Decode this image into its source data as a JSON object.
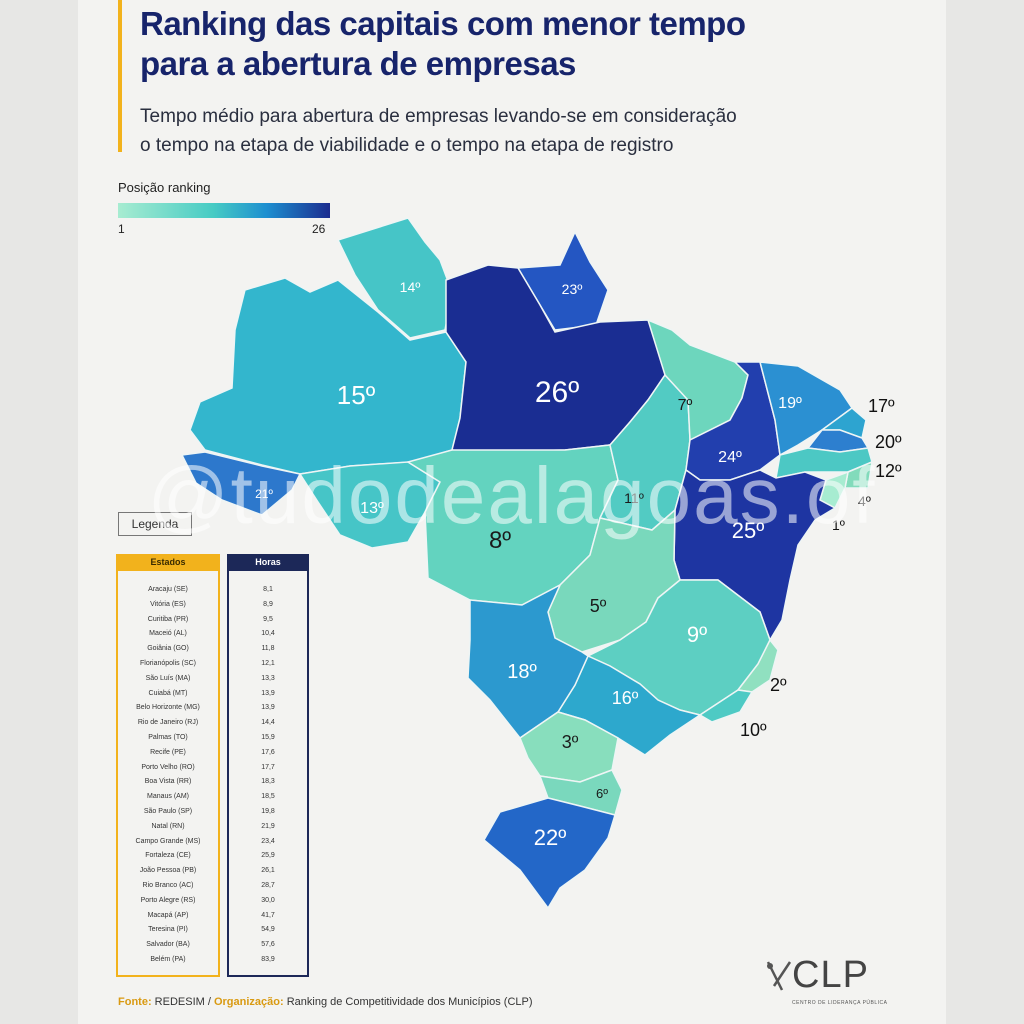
{
  "title_line1": "Ranking das capitais com menor tempo",
  "title_line2": "para a abertura de empresas",
  "subtitle_line1": "Tempo médio para abertura de empresas levando-se em consideração",
  "subtitle_line2": "o tempo na etapa de viabilidade e o tempo na etapa de registro",
  "legend": {
    "title": "Posição ranking",
    "min": "1",
    "max": "26"
  },
  "legenda_label": "Legenda",
  "table": {
    "col_estados": "Estados",
    "col_horas": "Horas",
    "estados": [
      "Aracaju (SE)",
      "Vitória (ES)",
      "Curitiba (PR)",
      "Maceió (AL)",
      "Goiânia (GO)",
      "Florianópolis (SC)",
      "São Luís (MA)",
      "Cuiabá (MT)",
      "Belo Horizonte (MG)",
      "Rio de Janeiro (RJ)",
      "Palmas (TO)",
      "Recife (PE)",
      "Porto Velho (RO)",
      "Boa Vista (RR)",
      "Manaus (AM)",
      "São Paulo (SP)",
      "Natal (RN)",
      "Campo Grande (MS)",
      "Fortaleza (CE)",
      "João Pessoa (PB)",
      "Rio Branco (AC)",
      "Porto Alegre (RS)",
      "Macapá (AP)",
      "Teresina (PI)",
      "Salvador (BA)",
      "Belém (PA)"
    ],
    "horas": [
      "8,1",
      "8,9",
      "9,5",
      "10,4",
      "11,8",
      "12,1",
      "13,3",
      "13,9",
      "13,9",
      "14,4",
      "15,9",
      "17,6",
      "17,7",
      "18,3",
      "18,5",
      "19,8",
      "21,9",
      "23,4",
      "25,9",
      "26,1",
      "28,7",
      "30,0",
      "41,7",
      "54,9",
      "57,6",
      "83,9"
    ]
  },
  "map": {
    "states": [
      {
        "id": "RR",
        "rank": "14º",
        "color": "#46c5c7"
      },
      {
        "id": "AP",
        "rank": "23º",
        "color": "#2456c2"
      },
      {
        "id": "AM",
        "rank": "15º",
        "color": "#33b6cd"
      },
      {
        "id": "PA",
        "rank": "26º",
        "color": "#1a2d92"
      },
      {
        "id": "AC",
        "rank": "21º",
        "color": "#2d78cc"
      },
      {
        "id": "RO",
        "rank": "13º",
        "color": "#46c5c7"
      },
      {
        "id": "MT",
        "rank": "8º",
        "color": "#63d3bf"
      },
      {
        "id": "TO",
        "rank": "11º",
        "color": "#52cbc3"
      },
      {
        "id": "MA",
        "rank": "7º",
        "color": "#6dd6bd"
      },
      {
        "id": "PI",
        "rank": "24º",
        "color": "#223fae"
      },
      {
        "id": "CE",
        "rank": "19º",
        "color": "#2b90d2"
      },
      {
        "id": "RN",
        "rank": "17º",
        "color": "#2da4d0"
      },
      {
        "id": "PB",
        "rank": "20º",
        "color": "#2d7fcf"
      },
      {
        "id": "PE",
        "rank": "12º",
        "color": "#4cc8c4"
      },
      {
        "id": "AL",
        "rank": "4º",
        "color": "#82dbbb"
      },
      {
        "id": "SE",
        "rank": "1º",
        "color": "#a7ecd1"
      },
      {
        "id": "BA",
        "rank": "25º",
        "color": "#1e35a2"
      },
      {
        "id": "GO",
        "rank": "5º",
        "color": "#79d8bc"
      },
      {
        "id": "MG",
        "rank": "9º",
        "color": "#5dcfc2"
      },
      {
        "id": "ES",
        "rank": "2º",
        "color": "#90e0c0"
      },
      {
        "id": "RJ",
        "rank": "10º",
        "color": "#4ecac4"
      },
      {
        "id": "SP",
        "rank": "16º",
        "color": "#2da8cd"
      },
      {
        "id": "MS",
        "rank": "18º",
        "color": "#2c99cf"
      },
      {
        "id": "PR",
        "rank": "3º",
        "color": "#88debd"
      },
      {
        "id": "SC",
        "rank": "6º",
        "color": "#7ad8bd"
      },
      {
        "id": "RS",
        "rank": "22º",
        "color": "#2367c8"
      }
    ]
  },
  "outside_ranks": {
    "RN": "17º",
    "PB": "20º",
    "PE": "12º",
    "AL": "4º",
    "SE": "1º",
    "ES": "2º",
    "RJ": "10º"
  },
  "source": {
    "label1": "Fonte:",
    "text1": "REDESIM /",
    "label2": "Organização:",
    "text2": "Ranking de Competitividade dos Municípios (CLP)"
  },
  "logo": {
    "name": "CLP",
    "tagline": "CENTRO DE LIDERANÇA PÚBLICA"
  },
  "watermark": "@tudodealagoas.of"
}
